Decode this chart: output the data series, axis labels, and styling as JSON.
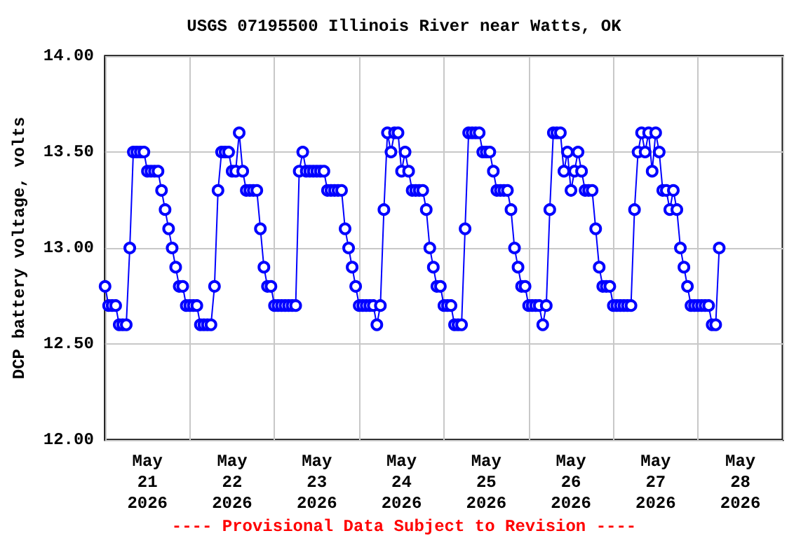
{
  "chart_data": {
    "type": "line",
    "title": "USGS 07195500 Illinois River near Watts, OK",
    "ylabel": "DCP battery voltage, volts",
    "annotations": [
      "---- Provisional Data Subject to Revision ----"
    ],
    "marker": "circle",
    "line_style": "solid",
    "grid": true,
    "xlim": [
      "2026-05-21T00:00",
      "2026-05-29T00:00"
    ],
    "xticks": [
      {
        "value": "2026-05-21T12:00",
        "label": "May\n21\n2026"
      },
      {
        "value": "2026-05-22T12:00",
        "label": "May\n22\n2026"
      },
      {
        "value": "2026-05-23T12:00",
        "label": "May\n23\n2026"
      },
      {
        "value": "2026-05-24T12:00",
        "label": "May\n24\n2026"
      },
      {
        "value": "2026-05-25T12:00",
        "label": "May\n25\n2026"
      },
      {
        "value": "2026-05-26T12:00",
        "label": "May\n26\n2026"
      },
      {
        "value": "2026-05-27T12:00",
        "label": "May\n27\n2026"
      },
      {
        "value": "2026-05-28T12:00",
        "label": "May\n28\n2026"
      },
      {
        "value": "2026-05-22T00:00",
        "label": null
      },
      {
        "value": "2026-05-23T00:00",
        "label": null
      },
      {
        "value": "2026-05-24T00:00",
        "label": null
      },
      {
        "value": "2026-05-25T00:00",
        "label": null
      },
      {
        "value": "2026-05-26T00:00",
        "label": null
      },
      {
        "value": "2026-05-27T00:00",
        "label": null
      },
      {
        "value": "2026-05-28T00:00",
        "label": null
      }
    ],
    "ylim": [
      12,
      14
    ],
    "yticks": [
      {
        "value": 12,
        "label": "12.00"
      },
      {
        "value": 12.5,
        "label": "12.50"
      },
      {
        "value": 13,
        "label": "13.00"
      },
      {
        "value": 13.5,
        "label": "13.50"
      },
      {
        "value": 14,
        "label": "14.00"
      }
    ],
    "series": [
      {
        "color": "#0000ff",
        "x": [
          "2026-05-21T00:00",
          "2026-05-21T01:00",
          "2026-05-21T02:00",
          "2026-05-21T03:00",
          "2026-05-21T04:00",
          "2026-05-21T05:00",
          "2026-05-21T06:00",
          "2026-05-21T07:00",
          "2026-05-21T08:00",
          "2026-05-21T09:00",
          "2026-05-21T10:00",
          "2026-05-21T11:00",
          "2026-05-21T12:00",
          "2026-05-21T13:00",
          "2026-05-21T14:00",
          "2026-05-21T15:00",
          "2026-05-21T16:00",
          "2026-05-21T17:00",
          "2026-05-21T18:00",
          "2026-05-21T19:00",
          "2026-05-21T20:00",
          "2026-05-21T21:00",
          "2026-05-21T22:00",
          "2026-05-21T23:00",
          "2026-05-22T00:00",
          "2026-05-22T01:00",
          "2026-05-22T02:00",
          "2026-05-22T03:00",
          "2026-05-22T04:00",
          "2026-05-22T05:00",
          "2026-05-22T06:00",
          "2026-05-22T07:00",
          "2026-05-22T08:00",
          "2026-05-22T09:00",
          "2026-05-22T10:00",
          "2026-05-22T11:00",
          "2026-05-22T12:00",
          "2026-05-22T13:00",
          "2026-05-22T14:00",
          "2026-05-22T15:00",
          "2026-05-22T16:00",
          "2026-05-22T17:00",
          "2026-05-22T18:00",
          "2026-05-22T19:00",
          "2026-05-22T20:00",
          "2026-05-22T21:00",
          "2026-05-22T22:00",
          "2026-05-22T23:00",
          "2026-05-23T00:00",
          "2026-05-23T01:00",
          "2026-05-23T02:00",
          "2026-05-23T03:00",
          "2026-05-23T04:00",
          "2026-05-23T05:00",
          "2026-05-23T06:00",
          "2026-05-23T07:00",
          "2026-05-23T08:00",
          "2026-05-23T09:00",
          "2026-05-23T10:00",
          "2026-05-23T11:00",
          "2026-05-23T12:00",
          "2026-05-23T13:00",
          "2026-05-23T14:00",
          "2026-05-23T15:00",
          "2026-05-23T16:00",
          "2026-05-23T17:00",
          "2026-05-23T18:00",
          "2026-05-23T19:00",
          "2026-05-23T20:00",
          "2026-05-23T21:00",
          "2026-05-23T22:00",
          "2026-05-23T23:00",
          "2026-05-24T00:00",
          "2026-05-24T01:00",
          "2026-05-24T02:00",
          "2026-05-24T03:00",
          "2026-05-24T04:00",
          "2026-05-24T05:00",
          "2026-05-24T06:00",
          "2026-05-24T07:00",
          "2026-05-24T08:00",
          "2026-05-24T09:00",
          "2026-05-24T10:00",
          "2026-05-24T11:00",
          "2026-05-24T12:00",
          "2026-05-24T13:00",
          "2026-05-24T14:00",
          "2026-05-24T15:00",
          "2026-05-24T16:00",
          "2026-05-24T17:00",
          "2026-05-24T18:00",
          "2026-05-24T19:00",
          "2026-05-24T20:00",
          "2026-05-24T21:00",
          "2026-05-24T22:00",
          "2026-05-24T23:00",
          "2026-05-25T00:00",
          "2026-05-25T01:00",
          "2026-05-25T02:00",
          "2026-05-25T03:00",
          "2026-05-25T04:00",
          "2026-05-25T05:00",
          "2026-05-25T06:00",
          "2026-05-25T07:00",
          "2026-05-25T08:00",
          "2026-05-25T09:00",
          "2026-05-25T10:00",
          "2026-05-25T11:00",
          "2026-05-25T12:00",
          "2026-05-25T13:00",
          "2026-05-25T14:00",
          "2026-05-25T15:00",
          "2026-05-25T16:00",
          "2026-05-25T17:00",
          "2026-05-25T18:00",
          "2026-05-25T19:00",
          "2026-05-25T20:00",
          "2026-05-25T21:00",
          "2026-05-25T22:00",
          "2026-05-25T23:00",
          "2026-05-26T00:00",
          "2026-05-26T01:00",
          "2026-05-26T02:00",
          "2026-05-26T03:00",
          "2026-05-26T04:00",
          "2026-05-26T05:00",
          "2026-05-26T06:00",
          "2026-05-26T07:00",
          "2026-05-26T08:00",
          "2026-05-26T09:00",
          "2026-05-26T10:00",
          "2026-05-26T11:00",
          "2026-05-26T12:00",
          "2026-05-26T13:00",
          "2026-05-26T14:00",
          "2026-05-26T15:00",
          "2026-05-26T16:00",
          "2026-05-26T17:00",
          "2026-05-26T18:00",
          "2026-05-26T19:00",
          "2026-05-26T20:00",
          "2026-05-26T21:00",
          "2026-05-26T22:00",
          "2026-05-26T23:00",
          "2026-05-27T00:00",
          "2026-05-27T01:00",
          "2026-05-27T02:00",
          "2026-05-27T03:00",
          "2026-05-27T04:00",
          "2026-05-27T05:00",
          "2026-05-27T06:00",
          "2026-05-27T07:00",
          "2026-05-27T08:00",
          "2026-05-27T09:00",
          "2026-05-27T10:00",
          "2026-05-27T11:00",
          "2026-05-27T12:00",
          "2026-05-27T13:00",
          "2026-05-27T14:00",
          "2026-05-27T15:00",
          "2026-05-27T16:00",
          "2026-05-27T17:00",
          "2026-05-27T18:00",
          "2026-05-27T19:00",
          "2026-05-27T20:00",
          "2026-05-27T21:00",
          "2026-05-27T22:00",
          "2026-05-27T23:00",
          "2026-05-28T00:00",
          "2026-05-28T01:00",
          "2026-05-28T02:00",
          "2026-05-28T03:00",
          "2026-05-28T04:00",
          "2026-05-28T05:00",
          "2026-05-28T06:00"
        ],
        "values": [
          12.8,
          12.7,
          12.7,
          12.7,
          12.6,
          12.6,
          12.6,
          13.0,
          13.5,
          13.5,
          13.5,
          13.5,
          13.4,
          13.4,
          13.4,
          13.4,
          13.3,
          13.2,
          13.1,
          13.0,
          12.9,
          12.8,
          12.8,
          12.7,
          12.7,
          12.7,
          12.7,
          12.6,
          12.6,
          12.6,
          12.6,
          12.8,
          13.3,
          13.5,
          13.5,
          13.5,
          13.4,
          13.4,
          13.6,
          13.4,
          13.3,
          13.3,
          13.3,
          13.3,
          13.1,
          12.9,
          12.8,
          12.8,
          12.7,
          12.7,
          12.7,
          12.7,
          12.7,
          12.7,
          12.7,
          13.4,
          13.5,
          13.4,
          13.4,
          13.4,
          13.4,
          13.4,
          13.4,
          13.3,
          13.3,
          13.3,
          13.3,
          13.3,
          13.1,
          13.0,
          12.9,
          12.8,
          12.7,
          12.7,
          12.7,
          12.7,
          12.7,
          12.6,
          12.7,
          13.2,
          13.6,
          13.5,
          13.6,
          13.6,
          13.4,
          13.5,
          13.4,
          13.3,
          13.3,
          13.3,
          13.3,
          13.2,
          13.0,
          12.9,
          12.8,
          12.8,
          12.7,
          12.7,
          12.7,
          12.6,
          12.6,
          12.6,
          13.1,
          13.6,
          13.6,
          13.6,
          13.6,
          13.5,
          13.5,
          13.5,
          13.4,
          13.3,
          13.3,
          13.3,
          13.3,
          13.2,
          13.0,
          12.9,
          12.8,
          12.8,
          12.7,
          12.7,
          12.7,
          12.7,
          12.6,
          12.7,
          13.2,
          13.6,
          13.6,
          13.6,
          13.4,
          13.5,
          13.3,
          13.4,
          13.5,
          13.4,
          13.3,
          13.3,
          13.3,
          13.1,
          12.9,
          12.8,
          12.8,
          12.8,
          12.7,
          12.7,
          12.7,
          12.7,
          12.7,
          12.7,
          13.2,
          13.5,
          13.6,
          13.5,
          13.6,
          13.4,
          13.6,
          13.5,
          13.3,
          13.3,
          13.2,
          13.3,
          13.2,
          13.0,
          12.9,
          12.8,
          12.7,
          12.7,
          12.7,
          12.7,
          12.7,
          12.7,
          12.6,
          12.6,
          13.0
        ]
      }
    ]
  }
}
